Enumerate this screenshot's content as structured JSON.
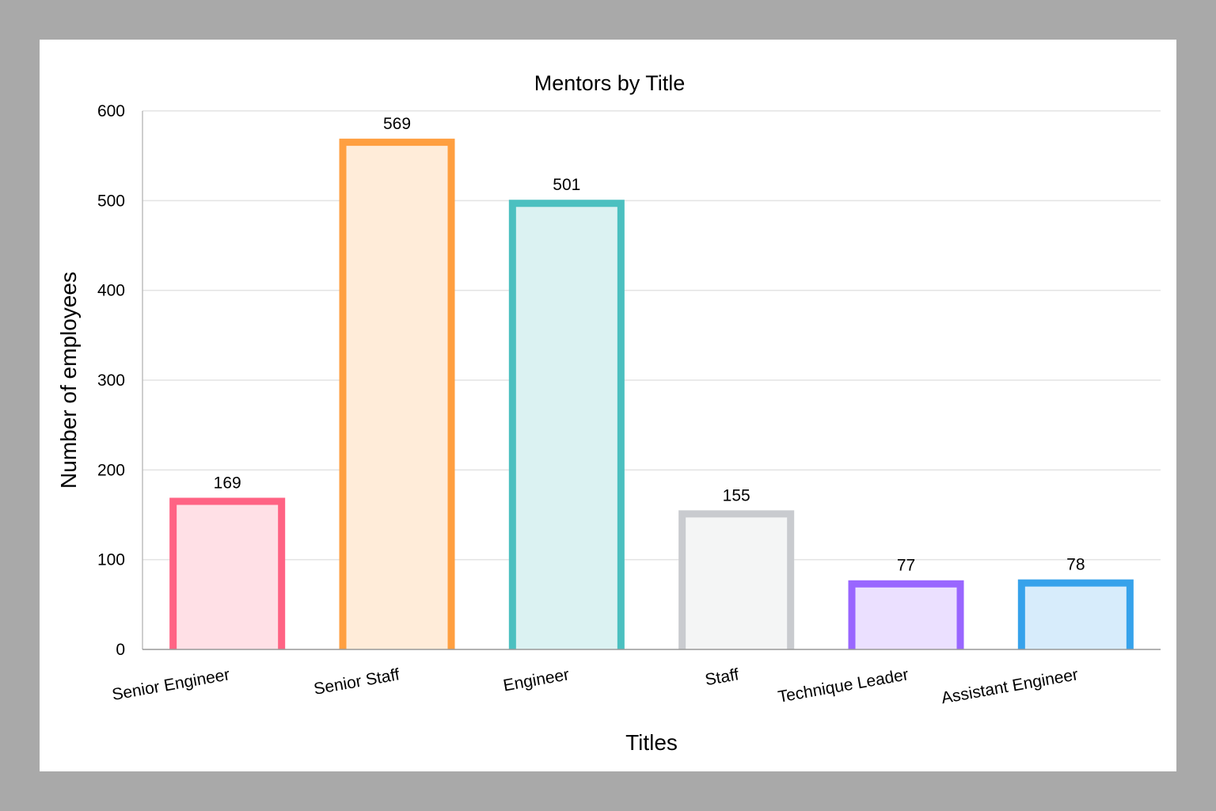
{
  "chart_data": {
    "type": "bar",
    "title": "Mentors by Title",
    "xlabel": "Titles",
    "ylabel": "Number of employees",
    "categories": [
      "Senior Engineer",
      "Senior Staff",
      "Engineer",
      "Staff",
      "Technique Leader",
      "Assistant Engineer"
    ],
    "values": [
      169,
      569,
      501,
      155,
      77,
      78
    ],
    "ylim": [
      0,
      600
    ],
    "yticks": [
      0,
      100,
      200,
      300,
      400,
      500,
      600
    ],
    "grid": true,
    "legend": "none",
    "colors": {
      "borders": [
        "#ff6384",
        "#ff9f40",
        "#4bc0c0",
        "#c9cbcf",
        "#9966ff",
        "#36a2eb"
      ],
      "fills": [
        "#ffe0e6",
        "#ffecd9",
        "#dbf2f2",
        "#f4f5f5",
        "#ebe0ff",
        "#d7ecfb"
      ]
    }
  }
}
